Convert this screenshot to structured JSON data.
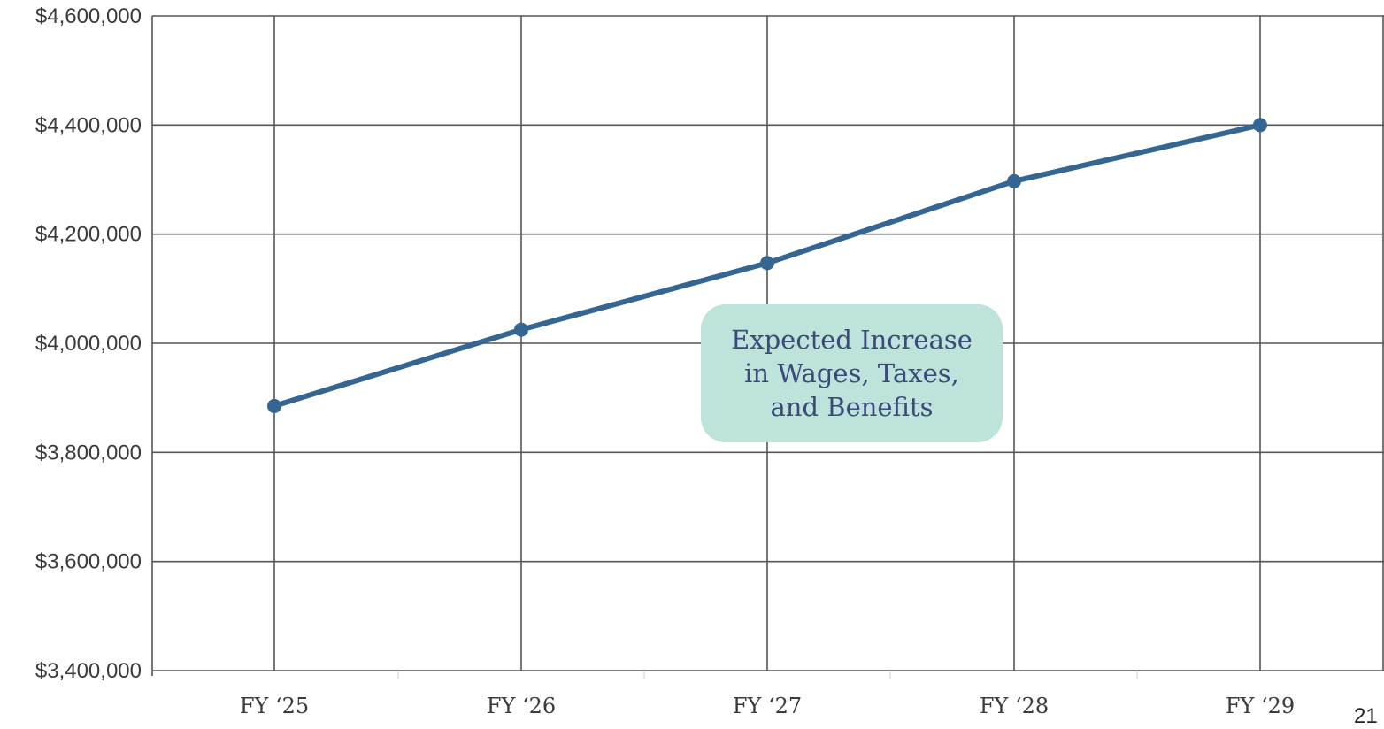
{
  "chart_data": {
    "type": "line",
    "title": "",
    "xlabel": "",
    "ylabel": "",
    "categories": [
      "FY ‘25",
      "FY ‘26",
      "FY ‘27",
      "FY ‘28",
      "FY ‘29"
    ],
    "series": [
      {
        "values": [
          3885000,
          4025000,
          4147000,
          4297000,
          4400000
        ]
      }
    ],
    "ylim": [
      3400000,
      4600000
    ],
    "yticks": [
      3400000,
      3600000,
      3800000,
      4000000,
      4200000,
      4400000,
      4600000
    ],
    "ytick_labels": [
      "$3,400,000",
      "$3,600,000",
      "$3,800,000",
      "$4,000,000",
      "$4,200,000",
      "$4,400,000",
      "$4,600,000"
    ],
    "grid": true,
    "annotation": {
      "lines": [
        "Expected Increase",
        "in Wages, Taxes,",
        "and Benefits"
      ]
    },
    "colors": {
      "line": "#356591",
      "grid": "#555555",
      "annotation_bg": "#bde3da",
      "annotation_text": "#3a4a7a"
    }
  },
  "page_number": "21"
}
